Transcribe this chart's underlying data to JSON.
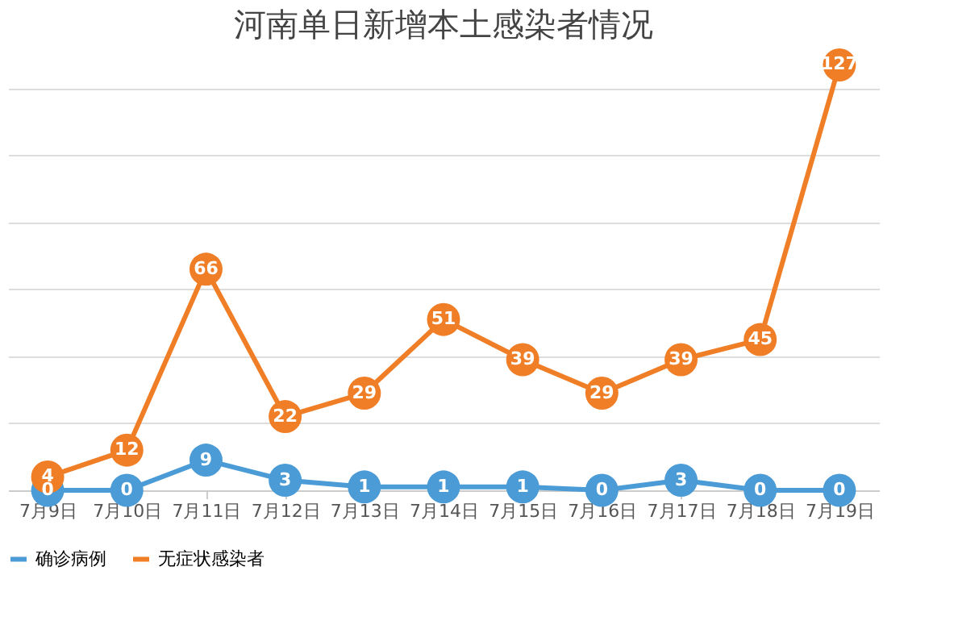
{
  "chart_data": {
    "type": "line",
    "title": "河南单日新增本土感染者情况",
    "categories": [
      "7月9日",
      "7月10日",
      "7月11日",
      "7月12日",
      "7月13日",
      "7月14日",
      "7月15日",
      "7月16日",
      "7月17日",
      "7月18日",
      "7月19日"
    ],
    "series": [
      {
        "name": "确诊病例",
        "color": "#4a9bd6",
        "values": [
          0,
          0,
          9,
          3,
          1,
          1,
          1,
          0,
          3,
          0,
          0
        ]
      },
      {
        "name": "无症状感染者",
        "color": "#f07e26",
        "values": [
          4,
          12,
          66,
          22,
          29,
          51,
          39,
          29,
          39,
          45,
          127
        ]
      }
    ],
    "grid": "y",
    "tick_labels": "x",
    "legend": "bottom",
    "marker": "circle",
    "line_style": "solid",
    "data_labels": true
  }
}
